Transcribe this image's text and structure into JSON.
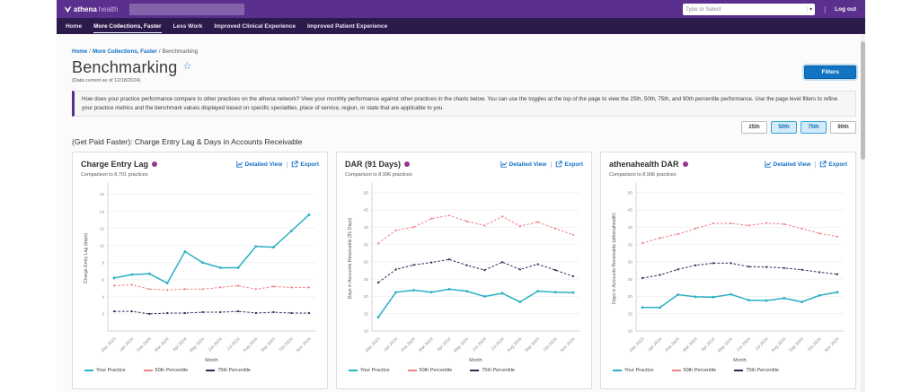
{
  "header": {
    "logo_athena": "athena",
    "logo_health": "health",
    "context_select_placeholder": "Type or Select",
    "logout_label": "Log out"
  },
  "nav": {
    "items": [
      {
        "label": "Home",
        "active": false
      },
      {
        "label": "More Collections, Faster",
        "active": true
      },
      {
        "label": "Less Work",
        "active": false
      },
      {
        "label": "Improved Clinical Experience",
        "active": false
      },
      {
        "label": "Improved Patient Experience",
        "active": false
      }
    ]
  },
  "breadcrumb": {
    "items": [
      "Home",
      "More Collections, Faster",
      "Benchmarking"
    ],
    "separator": "/"
  },
  "page": {
    "title": "Benchmarking",
    "data_current": "(Data current as of 12/18/2024)",
    "filters_button": "Filters",
    "intro": "How does your practice performance compare to other practices on the athena network? View your monthly performance against other practices in the charts below. You can use the toggles at the top of the page to view the 25th, 50th, 75th, and 90th percentile performance. Use the page level filters to refine your practice metrics and the benchmark values displayed based on specific specialties, place of service, region, or state that are applicable to you.",
    "percentile_toggles": [
      {
        "label": "25th",
        "active": false
      },
      {
        "label": "50th",
        "active": true
      },
      {
        "label": "75th",
        "active": true
      },
      {
        "label": "90th",
        "active": false
      }
    ],
    "section_title": "(Get Paid Faster): Charge Entry Lag & Days in Accounts Receivable"
  },
  "card_actions": {
    "detailed_view": "Detailed View",
    "export": "Export",
    "separator": "|"
  },
  "colors": {
    "header_purple": "#5b2f8e",
    "nav_purple": "#2c1a4d",
    "link_blue": "#1271c4",
    "your_practice": "#29b0c3",
    "p50": "#ef8289",
    "p75": "#2f2a55",
    "toggle_active_bg": "#d2ebf7"
  },
  "chart_data": [
    {
      "type": "line",
      "title": "Charge Entry Lag",
      "subtitle": "Comparison to 8,701 practices",
      "xlabel": "Month",
      "ylabel": "Charge Entry Lag (days)",
      "ylim": [
        0,
        17
      ],
      "yticks": [
        2,
        4,
        6,
        8,
        10,
        12,
        14,
        16
      ],
      "grid": true,
      "legend_position": "bottom",
      "categories": [
        "Dec 2023",
        "Jan 2024",
        "Feb 2024",
        "Mar 2024",
        "Apr 2024",
        "May 2024",
        "Jun 2024",
        "Jul 2024",
        "Aug 2024",
        "Sep 2024",
        "Oct 2024",
        "Nov 2024"
      ],
      "series": [
        {
          "name": "Your Practice",
          "style": "solid",
          "color": "#29b0c3",
          "values": [
            6.2,
            6.6,
            6.7,
            5.6,
            9.3,
            8.0,
            7.4,
            7.4,
            9.9,
            9.8,
            11.7,
            13.6
          ]
        },
        {
          "name": "50th Percentile",
          "style": "dashed",
          "color": "#ef8289",
          "values": [
            5.3,
            5.4,
            4.9,
            4.8,
            4.9,
            4.9,
            5.1,
            5.3,
            4.9,
            5.2,
            5.1,
            5.1
          ]
        },
        {
          "name": "75th Percentile",
          "style": "dashed",
          "color": "#2f2a55",
          "values": [
            2.3,
            2.3,
            2.0,
            2.1,
            2.1,
            2.2,
            2.2,
            2.3,
            2.1,
            2.2,
            2.1,
            2.1
          ]
        }
      ]
    },
    {
      "type": "line",
      "title": "DAR (91 Days)",
      "subtitle": "Comparison to 8,996 practices",
      "xlabel": "Month",
      "ylabel": "Days in Accounts Receivable (91 Days)",
      "ylim": [
        10,
        52
      ],
      "yticks": [
        10,
        15,
        20,
        25,
        30,
        35,
        40,
        45,
        50
      ],
      "grid": true,
      "legend_position": "bottom",
      "categories": [
        "Dec 2023",
        "Jan 2024",
        "Feb 2024",
        "Mar 2024",
        "Apr 2024",
        "May 2024",
        "Jun 2024",
        "Jul 2024",
        "Aug 2024",
        "Sep 2024",
        "Oct 2024",
        "Nov 2024"
      ],
      "series": [
        {
          "name": "Your Practice",
          "style": "solid",
          "color": "#29b0c3",
          "values": [
            14.0,
            21.2,
            21.8,
            21.2,
            22.1,
            21.5,
            20.0,
            20.9,
            18.4,
            21.5,
            21.2,
            21.1
          ]
        },
        {
          "name": "50th Percentile",
          "style": "dashed",
          "color": "#ef8289",
          "values": [
            35.3,
            39.1,
            40.0,
            42.5,
            43.4,
            41.7,
            40.5,
            43.1,
            40.3,
            41.5,
            39.6,
            37.8
          ]
        },
        {
          "name": "75th Percentile",
          "style": "dashed",
          "color": "#2f2a55",
          "values": [
            24.0,
            27.8,
            29.1,
            29.8,
            30.7,
            29.0,
            27.6,
            29.9,
            27.8,
            29.3,
            27.6,
            25.8
          ]
        }
      ]
    },
    {
      "type": "line",
      "title": "athenahealth DAR",
      "subtitle": "Comparison to 8,996 practices",
      "xlabel": "Month",
      "ylabel": "Days in Accounts Receivable (athenahealth)",
      "ylim": [
        10,
        52
      ],
      "yticks": [
        10,
        15,
        20,
        25,
        30,
        35,
        40,
        45,
        50
      ],
      "grid": true,
      "legend_position": "bottom",
      "categories": [
        "Dec 2023",
        "Jan 2024",
        "Feb 2024",
        "Mar 2024",
        "Apr 2024",
        "May 2024",
        "Jun 2024",
        "Jul 2024",
        "Aug 2024",
        "Sep 2024",
        "Oct 2024",
        "Nov 2024"
      ],
      "series": [
        {
          "name": "Your Practice",
          "style": "solid",
          "color": "#29b0c3",
          "values": [
            16.8,
            16.8,
            20.5,
            19.9,
            19.8,
            20.6,
            18.9,
            18.8,
            19.5,
            18.4,
            20.3,
            21.2
          ]
        },
        {
          "name": "50th Percentile",
          "style": "dashed",
          "color": "#ef8289",
          "values": [
            35.4,
            36.9,
            38.0,
            39.6,
            41.1,
            41.1,
            40.5,
            41.2,
            40.9,
            39.6,
            38.2,
            37.3
          ]
        },
        {
          "name": "75th Percentile",
          "style": "dashed",
          "color": "#2f2a55",
          "values": [
            25.3,
            26.2,
            27.8,
            29.0,
            29.6,
            29.6,
            28.6,
            28.5,
            28.2,
            27.7,
            27.0,
            26.4
          ]
        }
      ]
    }
  ]
}
